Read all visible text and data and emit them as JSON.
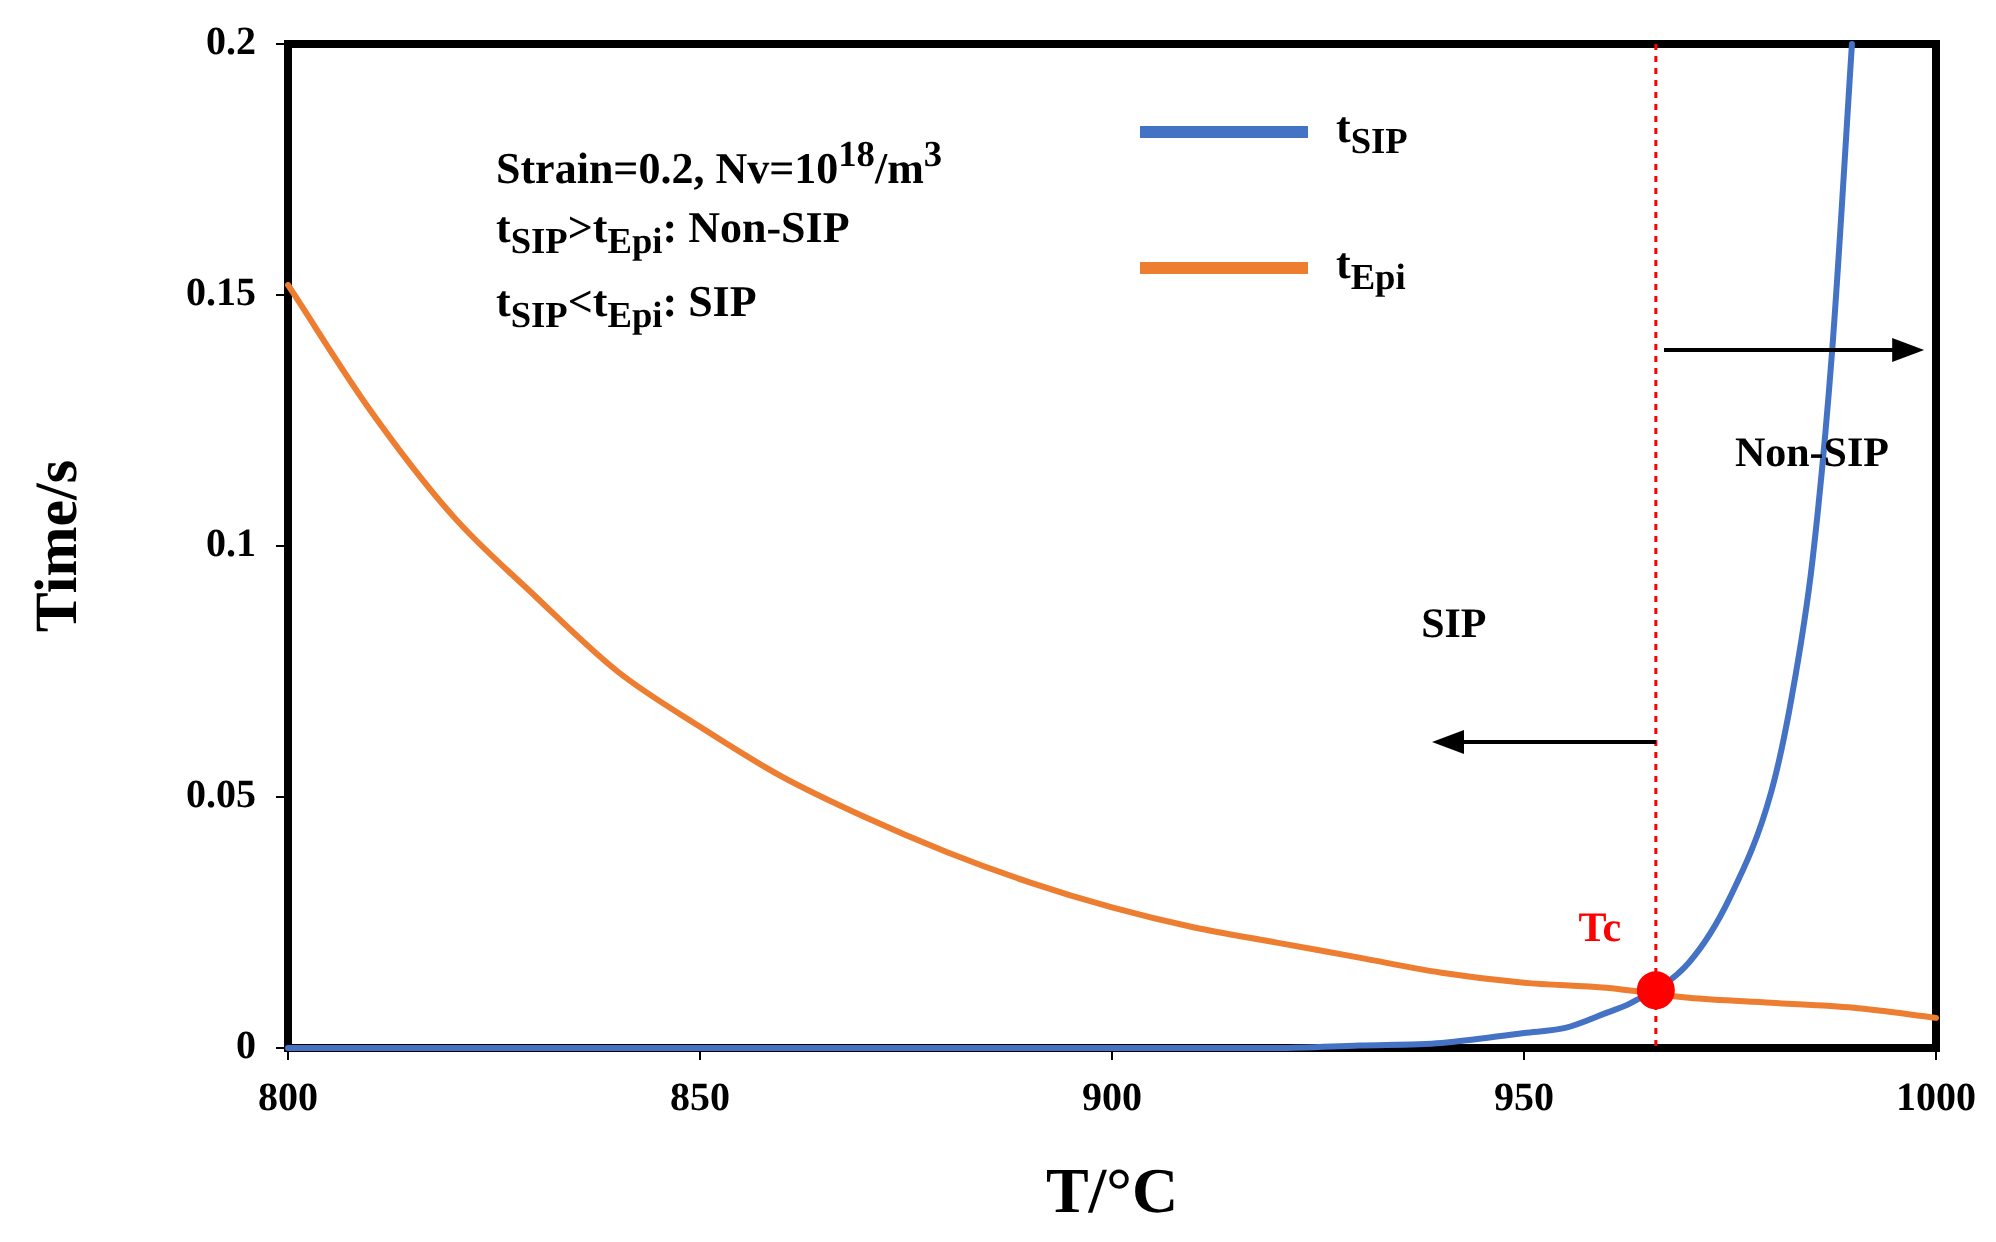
{
  "chart_data": {
    "type": "line",
    "xlabel": "T/°C",
    "ylabel": "Time/s",
    "xlim": [
      800,
      1000
    ],
    "xticks": [
      800,
      850,
      900,
      950,
      1000
    ],
    "ylim": [
      0,
      0.2
    ],
    "yticks": [
      0,
      0.05,
      0.1,
      0.15,
      0.2
    ],
    "grid": false,
    "legend": "top",
    "series": [
      {
        "name": "t$_{SIP}$",
        "color": "#4472c4",
        "x": [
          800,
          850,
          900,
          920,
          930,
          940,
          950,
          955,
          960,
          963,
          970,
          975,
          980,
          982.5,
          985,
          987.4,
          989.8
        ],
        "values": [
          0,
          0,
          0,
          0,
          0.0005,
          0.001,
          0.003,
          0.004,
          0.007,
          0.009,
          0.017,
          0.03,
          0.051,
          0.07,
          0.097,
          0.139,
          0.2
        ]
      },
      {
        "name": "t$_{Epi}$",
        "color": "#ed7d31",
        "x": [
          800,
          810,
          820,
          830,
          840,
          850,
          860,
          870,
          880,
          890,
          900,
          910,
          920,
          930,
          940,
          950,
          960,
          970,
          980,
          990,
          1000
        ],
        "values": [
          0.152,
          0.127,
          0.106,
          0.09,
          0.075,
          0.064,
          0.054,
          0.046,
          0.039,
          0.033,
          0.028,
          0.024,
          0.021,
          0.018,
          0.015,
          0.013,
          0.012,
          0.01,
          0.009,
          0.008,
          0.006
        ]
      },
      {
        "type": "scatter",
        "color": "#ff0000",
        "x": [
          966
        ],
        "values": [
          0.0115
        ]
      }
    ],
    "ref_lines": [
      {
        "axis": "x",
        "value": 966,
        "color": "#ff0000",
        "line_style": "dotted"
      }
    ],
    "annotations": [
      "Strain=0.2, Nv=10$^{18}$/m$^{3}$",
      "t$_{SIP}$>t$_{Epi}$: Non-SIP",
      "t$_{SIP}$<t$_{Epi}$: SIP",
      "SIP",
      "Non-SIP",
      {
        "text": "Tc",
        "x": 966,
        "y": 0.0115
      }
    ]
  }
}
